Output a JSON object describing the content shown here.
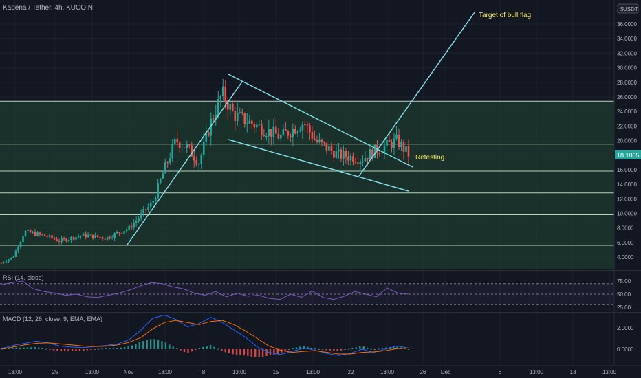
{
  "header": {
    "symbol_title": "Kadena / Tether, 4h, KUCOIN",
    "currency_button": "USDT",
    "currency_icon": "dollar-sign-icon"
  },
  "colors": {
    "background": "#131722",
    "grid": "#2a2e39",
    "zone_fill": "#1e3a2f",
    "horizontal_line": "#c8e6c9",
    "trendline": "#80deea",
    "candle_up": "#26a69a",
    "candle_down": "#ef5350",
    "annotation_text": "#f5e663",
    "price_tag": "#26a69a",
    "rsi_line": "#7e57c2",
    "macd_line": "#2962ff",
    "signal_line": "#ff6d00"
  },
  "chart_data": [
    {
      "type": "candlestick",
      "title": "Kadena / Tether, 4h, KUCOIN",
      "x_ticks": [
        "13:00",
        "25",
        "13:00",
        "Nov",
        "13:00",
        "8",
        "13:00",
        "15",
        "13:00",
        "22",
        "13:00",
        "26",
        "Dec",
        "6",
        "13:00",
        "13",
        "13:00"
      ],
      "y_ticks": [
        "36.0000",
        "34.0000",
        "32.0000",
        "30.0000",
        "28.0000",
        "26.0000",
        "24.0000",
        "22.0000",
        "20.0000",
        "18.0000",
        "16.0000",
        "14.0000",
        "12.0000",
        "10.0000",
        "8.0000",
        "6.0000",
        "4.0000"
      ],
      "ylim": [
        2.5,
        37.5
      ],
      "last_price": "18.1005",
      "approx_close_path": [
        {
          "x": "Oct 23",
          "y": 3.2
        },
        {
          "x": "Oct 24",
          "y": 4.0
        },
        {
          "x": "Oct 25",
          "y": 7.5
        },
        {
          "x": "Oct 27",
          "y": 6.8
        },
        {
          "x": "Oct 28",
          "y": 6.2
        },
        {
          "x": "Oct 30",
          "y": 7.0
        },
        {
          "x": "Nov 1",
          "y": 6.6
        },
        {
          "x": "Nov 3",
          "y": 8.0
        },
        {
          "x": "Nov 5",
          "y": 11.5
        },
        {
          "x": "Nov 6",
          "y": 16.0
        },
        {
          "x": "Nov 7",
          "y": 20.0
        },
        {
          "x": "Nov 8",
          "y": 19.0
        },
        {
          "x": "Nov 9",
          "y": 17.0
        },
        {
          "x": "Nov 10",
          "y": 22.5
        },
        {
          "x": "Nov 11",
          "y": 26.5
        },
        {
          "x": "Nov 12",
          "y": 23.5
        },
        {
          "x": "Nov 14",
          "y": 22.0
        },
        {
          "x": "Nov 16",
          "y": 20.5
        },
        {
          "x": "Nov 18",
          "y": 22.5
        },
        {
          "x": "Nov 19",
          "y": 20.0
        },
        {
          "x": "Nov 21",
          "y": 18.0
        },
        {
          "x": "Nov 23",
          "y": 17.5
        },
        {
          "x": "Nov 24",
          "y": 18.5
        },
        {
          "x": "Nov 26",
          "y": 20.0
        },
        {
          "x": "Nov 27",
          "y": 18.1
        }
      ],
      "horizontal_levels": [
        25.4,
        19.5,
        15.8,
        12.8,
        9.8,
        5.6
      ],
      "zone": [
        2.5,
        25.4
      ],
      "annotations": [
        "Target of bull flag",
        "Retesting."
      ]
    },
    {
      "type": "line",
      "title": "RSI (14, close)",
      "y_ticks": [
        "75.00",
        "50.00",
        "25.00"
      ],
      "ylim": [
        20,
        85
      ],
      "bands": [
        70,
        50,
        30
      ],
      "series": [
        {
          "name": "RSI",
          "values": [
            68,
            72,
            75,
            60,
            55,
            52,
            48,
            50,
            45,
            44,
            48,
            52,
            58,
            66,
            72,
            70,
            64,
            60,
            52,
            48,
            55,
            45,
            52,
            46,
            48,
            42,
            40,
            50,
            44,
            56,
            44,
            40,
            46,
            55,
            50,
            45,
            62,
            52,
            50
          ]
        }
      ]
    },
    {
      "type": "line",
      "title": "MACD (12, 26, close, 9, EMA, EMA)",
      "y_ticks": [
        "2.0000",
        "0.0000"
      ],
      "ylim": [
        -0.8,
        3.6
      ],
      "series": [
        {
          "name": "MACD",
          "values": [
            0.05,
            0.35,
            0.55,
            0.75,
            0.6,
            0.3,
            0.2,
            0.15,
            0.25,
            0.35,
            0.5,
            0.9,
            1.8,
            2.9,
            3.2,
            2.8,
            2.1,
            2.4,
            3.0,
            2.5,
            1.8,
            1.1,
            0.2,
            -0.3,
            -0.5,
            -0.2,
            0.1,
            -0.1,
            -0.4,
            -0.6,
            -0.4,
            0.0,
            -0.3,
            0.0,
            0.3,
            0.1
          ]
        },
        {
          "name": "Signal",
          "values": [
            0.0,
            0.2,
            0.4,
            0.55,
            0.6,
            0.5,
            0.4,
            0.3,
            0.25,
            0.28,
            0.4,
            0.65,
            1.1,
            1.9,
            2.5,
            2.7,
            2.5,
            2.3,
            2.6,
            2.7,
            2.3,
            1.7,
            1.0,
            0.3,
            -0.1,
            -0.3,
            -0.2,
            -0.15,
            -0.3,
            -0.45,
            -0.45,
            -0.3,
            -0.25,
            -0.15,
            0.05,
            0.1
          ]
        }
      ]
    }
  ]
}
